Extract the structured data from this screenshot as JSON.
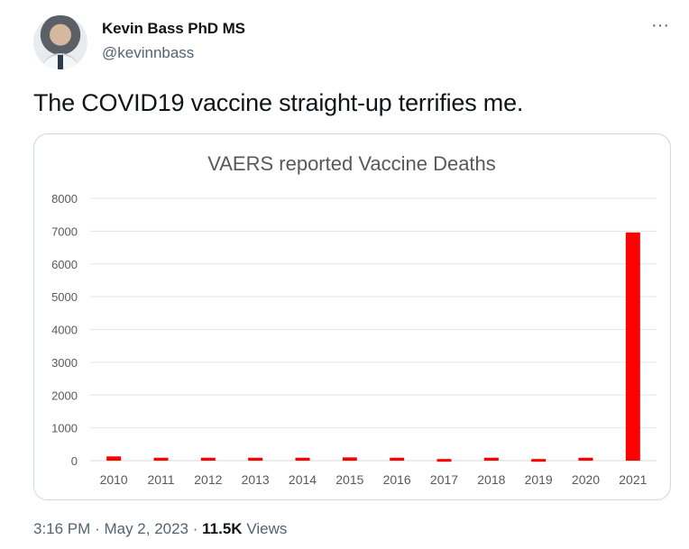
{
  "author": {
    "name": "Kevin Bass PhD MS",
    "handle": "@kevinnbass"
  },
  "menu_icon": "more-horizontal-icon",
  "menu_glyph": "···",
  "tweet": {
    "text": "The COVID19 vaccine straight-up terrifies me."
  },
  "meta": {
    "time": "3:16 PM",
    "date": "May 2, 2023",
    "separator": "·",
    "views_count": "11.5K",
    "views_label": "Views"
  },
  "chart_data": {
    "type": "bar",
    "title": "VAERS reported Vaccine Deaths",
    "categories": [
      "2010",
      "2011",
      "2012",
      "2013",
      "2014",
      "2015",
      "2016",
      "2017",
      "2018",
      "2019",
      "2020",
      "2021"
    ],
    "values": [
      130,
      90,
      90,
      90,
      90,
      100,
      90,
      50,
      90,
      50,
      90,
      6960
    ],
    "ylim": [
      0,
      8000
    ],
    "yticks": [
      0,
      1000,
      2000,
      3000,
      4000,
      5000,
      6000,
      7000,
      8000
    ],
    "bar_color": "#ff0000",
    "grid": true,
    "legend": "none"
  }
}
